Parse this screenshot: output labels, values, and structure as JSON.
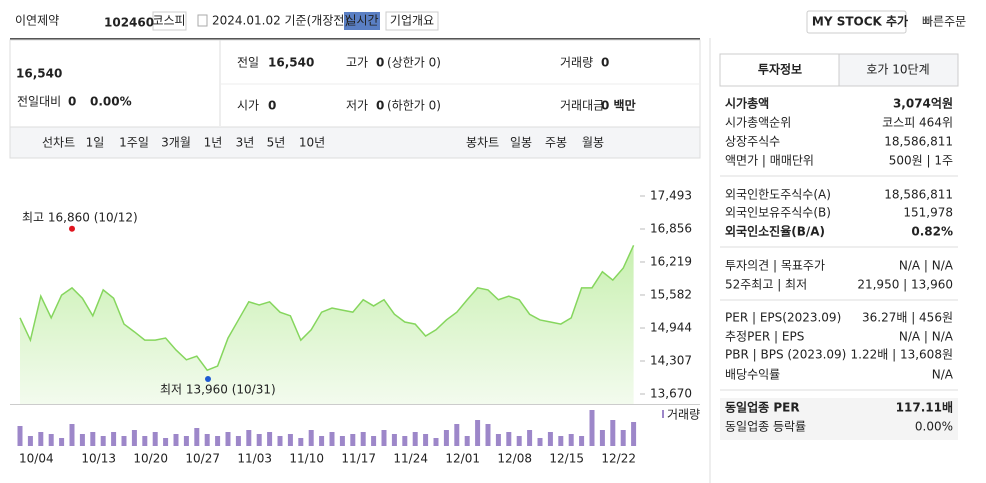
{
  "header": {
    "name": "이연제약",
    "code": "102460",
    "market": "코스피",
    "date": "2024.01.02 기준(개장전)",
    "realtime": "실시간",
    "company": "기업개요",
    "mystock": "MY STOCK 추가",
    "quick": "빠른주문"
  },
  "price": {
    "current": "16,540",
    "change_label": "전일대비",
    "change": "0",
    "rate": "0.00%"
  },
  "quote": [
    {
      "label": "전일",
      "value": "16,540"
    },
    {
      "label": "고가",
      "value": "0",
      "note": "(상한가 0)"
    },
    {
      "label": "거래량",
      "value": "0"
    },
    {
      "label": "시가",
      "value": "0"
    },
    {
      "label": "저가",
      "value": "0",
      "note": "(하한가 0)"
    },
    {
      "label": "거래대금",
      "value": "0 백만"
    }
  ],
  "line_tabs": {
    "label": "선차트",
    "items": [
      "1일",
      "1주일",
      "3개월",
      "1년",
      "3년",
      "5년",
      "10년"
    ]
  },
  "candle_tabs": {
    "label": "봉차트",
    "items": [
      "일봉",
      "주봉",
      "월봉"
    ]
  },
  "chart_data": {
    "type": "line",
    "color": "#86d65e",
    "categories": [
      "10/04",
      null,
      null,
      null,
      null,
      null,
      "10/13",
      null,
      null,
      null,
      null,
      "10/20",
      null,
      null,
      null,
      null,
      "10/27",
      null,
      null,
      null,
      null,
      "11/03",
      null,
      null,
      null,
      null,
      "11/10",
      null,
      null,
      null,
      null,
      "11/17",
      null,
      null,
      null,
      null,
      "11/24",
      null,
      null,
      null,
      null,
      "12/01",
      null,
      null,
      null,
      null,
      "12/08",
      null,
      null,
      null,
      null,
      "12/15",
      null,
      null,
      null,
      null,
      "12/22",
      null,
      null,
      null
    ],
    "values": [
      15140,
      14710,
      15560,
      15140,
      15580,
      15720,
      15520,
      15180,
      15680,
      15520,
      15020,
      14870,
      14710,
      14710,
      14750,
      14520,
      14330,
      14400,
      14130,
      14210,
      14750,
      15100,
      15450,
      15390,
      15450,
      15250,
      15180,
      14710,
      14910,
      15250,
      15330,
      15290,
      15250,
      15490,
      15370,
      15490,
      15210,
      15060,
      15020,
      14790,
      14910,
      15100,
      15250,
      15490,
      15720,
      15680,
      15490,
      15560,
      15490,
      15210,
      15100,
      15060,
      15020,
      15140,
      15720,
      15720,
      16030,
      15870,
      16100,
      16540
    ],
    "ylim": [
      13670,
      17493
    ],
    "yticks": [
      {
        "value": 17493,
        "label": "17,493"
      },
      {
        "value": 16856,
        "label": "16,856"
      },
      {
        "value": 16219,
        "label": "16,219"
      },
      {
        "value": 15582,
        "label": "15,582"
      },
      {
        "value": 14944,
        "label": "14,944"
      },
      {
        "value": 14307,
        "label": "14,307"
      },
      {
        "value": 13670,
        "label": "13,670"
      }
    ],
    "high": {
      "label": "최고 16,860 (10/12)",
      "value": 16860
    },
    "low": {
      "label": "최저 13,960 (10/31)",
      "value": 13960
    },
    "volume": {
      "label": "거래량",
      "color": "#9d87c9",
      "y2lim": [
        0,
        40
      ],
      "values": [
        20,
        10,
        14,
        12,
        8,
        22,
        12,
        14,
        10,
        14,
        10,
        16,
        10,
        14,
        8,
        12,
        10,
        18,
        12,
        10,
        14,
        10,
        16,
        12,
        14,
        10,
        12,
        8,
        16,
        10,
        14,
        10,
        12,
        14,
        10,
        16,
        12,
        10,
        14,
        12,
        8,
        16,
        22,
        10,
        26,
        22,
        12,
        14,
        10,
        16,
        8,
        14,
        10,
        12,
        10,
        36,
        16,
        26,
        16,
        24
      ]
    }
  },
  "info": {
    "tabs": [
      "투자정보",
      "호가 10단계"
    ],
    "sections": [
      [
        [
          "시가총액",
          "3,074억원"
        ],
        [
          "시가총액순위",
          "코스피 464위"
        ],
        [
          "상장주식수",
          "18,586,811"
        ],
        [
          "액면가 | 매매단위",
          "500원 | 1주"
        ]
      ],
      [
        [
          "외국인한도주식수(A)",
          "18,586,811"
        ],
        [
          "외국인보유주식수(B)",
          "151,978"
        ],
        [
          "외국인소진율(B/A)",
          "0.82%"
        ]
      ],
      [
        [
          "투자의견 | 목표주가",
          "N/A | N/A"
        ],
        [
          "52주최고 | 최저",
          "21,950 | 13,960"
        ]
      ],
      [
        [
          "PER | EPS(2023.09)",
          "36.27배 | 456원"
        ],
        [
          "추정PER | EPS",
          "N/A | N/A"
        ],
        [
          "PBR | BPS (2023.09)",
          "1.22배 | 13,608원"
        ],
        [
          "배당수익률",
          "N/A"
        ]
      ],
      [
        [
          "동일업종 PER",
          "117.11배"
        ],
        [
          "동일업종 등락률",
          "0.00%"
        ]
      ]
    ]
  }
}
